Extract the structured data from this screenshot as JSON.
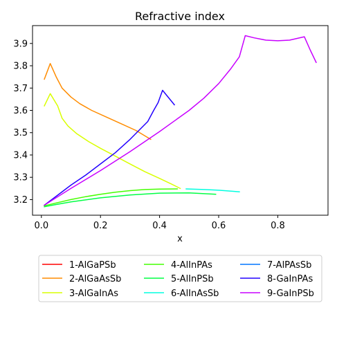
{
  "chart_data": {
    "type": "line",
    "title": "Refractive index",
    "xlabel": "x",
    "ylabel": "",
    "xlim": [
      -0.03,
      0.97
    ],
    "ylim": [
      3.13,
      3.98
    ],
    "xticks": [
      0.0,
      0.2,
      0.4,
      0.6,
      0.8
    ],
    "xtick_labels": [
      "0.0",
      "0.2",
      "0.4",
      "0.6",
      "0.8"
    ],
    "yticks": [
      3.2,
      3.3,
      3.4,
      3.5,
      3.6,
      3.7,
      3.8,
      3.9
    ],
    "ytick_labels": [
      "3.2",
      "3.3",
      "3.4",
      "3.5",
      "3.6",
      "3.7",
      "3.8",
      "3.9"
    ],
    "grid": false,
    "legend_position": "bottom",
    "series": [
      {
        "name": "1-AlGaPSb",
        "color": "#ff0000",
        "x": [],
        "y": []
      },
      {
        "name": "2-AlGaAsSb",
        "color": "#ff8c00",
        "x": [
          0.01,
          0.03,
          0.05,
          0.07,
          0.1,
          0.13,
          0.17,
          0.22,
          0.27,
          0.32,
          0.37
        ],
        "y": [
          3.74,
          3.81,
          3.75,
          3.7,
          3.66,
          3.63,
          3.6,
          3.57,
          3.54,
          3.51,
          3.47
        ]
      },
      {
        "name": "3-AlGaInAs",
        "color": "#d9ff00",
        "x": [
          0.01,
          0.03,
          0.055,
          0.07,
          0.09,
          0.12,
          0.16,
          0.2,
          0.25,
          0.3,
          0.35,
          0.4,
          0.44,
          0.47
        ],
        "y": [
          3.62,
          3.675,
          3.62,
          3.565,
          3.53,
          3.495,
          3.46,
          3.43,
          3.395,
          3.36,
          3.325,
          3.295,
          3.27,
          3.25
        ]
      },
      {
        "name": "4-AlInPAs",
        "color": "#44ff00",
        "x": [
          0.01,
          0.05,
          0.1,
          0.15,
          0.2,
          0.25,
          0.3,
          0.35,
          0.4,
          0.46
        ],
        "y": [
          3.172,
          3.185,
          3.2,
          3.213,
          3.224,
          3.233,
          3.24,
          3.245,
          3.247,
          3.248
        ]
      },
      {
        "name": "5-AlInPSb",
        "color": "#00ff44",
        "x": [
          0.01,
          0.05,
          0.1,
          0.2,
          0.3,
          0.4,
          0.5,
          0.59
        ],
        "y": [
          3.168,
          3.178,
          3.19,
          3.208,
          3.221,
          3.229,
          3.23,
          3.224
        ]
      },
      {
        "name": "6-AlInAsSb",
        "color": "#00ffe0",
        "x": [
          0.49,
          0.55,
          0.6,
          0.65,
          0.67
        ],
        "y": [
          3.248,
          3.245,
          3.242,
          3.237,
          3.235
        ]
      },
      {
        "name": "7-AlPAsSb",
        "color": "#0077ff",
        "x": [],
        "y": []
      },
      {
        "name": "8-GaInPAs",
        "color": "#2200ff",
        "x": [
          0.01,
          0.05,
          0.1,
          0.15,
          0.2,
          0.25,
          0.3,
          0.33,
          0.36,
          0.38,
          0.395,
          0.41,
          0.45
        ],
        "y": [
          3.175,
          3.215,
          3.265,
          3.31,
          3.36,
          3.41,
          3.47,
          3.51,
          3.55,
          3.6,
          3.635,
          3.69,
          3.625
        ]
      },
      {
        "name": "9-GaInPSb",
        "color": "#c800ff",
        "x": [
          0.01,
          0.1,
          0.2,
          0.3,
          0.4,
          0.5,
          0.55,
          0.6,
          0.64,
          0.67,
          0.69,
          0.72,
          0.76,
          0.8,
          0.84,
          0.89,
          0.91,
          0.93
        ],
        "y": [
          3.175,
          3.25,
          3.33,
          3.415,
          3.505,
          3.6,
          3.655,
          3.72,
          3.785,
          3.84,
          3.935,
          3.925,
          3.915,
          3.912,
          3.915,
          3.93,
          3.87,
          3.815
        ]
      }
    ]
  }
}
